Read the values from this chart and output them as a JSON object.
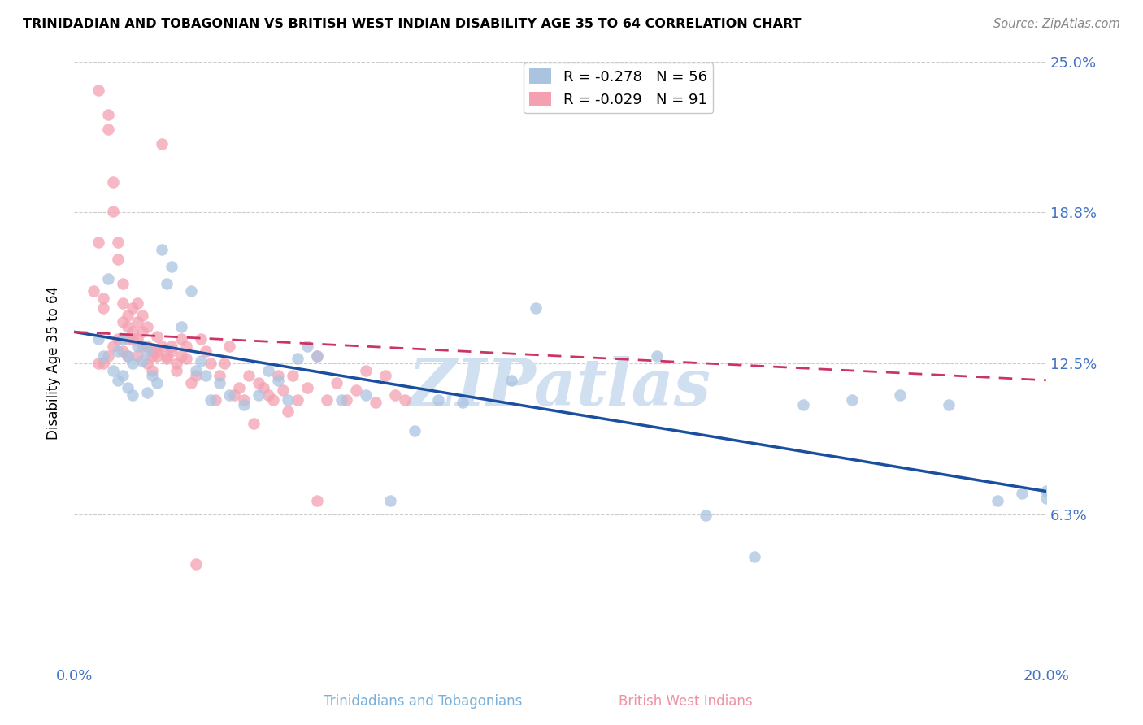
{
  "title": "TRINIDADIAN AND TOBAGONIAN VS BRITISH WEST INDIAN DISABILITY AGE 35 TO 64 CORRELATION CHART",
  "source": "Source: ZipAtlas.com",
  "ylabel": "Disability Age 35 to 64",
  "xlim": [
    0.0,
    0.2
  ],
  "ylim": [
    0.0,
    0.25
  ],
  "yticks": [
    0.0625,
    0.125,
    0.1875,
    0.25
  ],
  "ytick_labels": [
    "6.3%",
    "12.5%",
    "18.8%",
    "25.0%"
  ],
  "xticks": [
    0.0,
    0.05,
    0.1,
    0.15,
    0.2
  ],
  "xtick_labels": [
    "0.0%",
    "",
    "",
    "",
    "20.0%"
  ],
  "legend_entry1": "R = -0.278   N = 56",
  "legend_entry2": "R = -0.029   N = 91",
  "series1_color": "#aac4e0",
  "series2_color": "#f4a0b0",
  "trendline1_color": "#1a4fa0",
  "trendline2_color": "#cc3366",
  "watermark": "ZIPatlas",
  "watermark_color": "#d0e0f0",
  "series1_x": [
    0.005,
    0.006,
    0.007,
    0.008,
    0.009,
    0.009,
    0.01,
    0.01,
    0.011,
    0.011,
    0.012,
    0.012,
    0.013,
    0.014,
    0.015,
    0.015,
    0.016,
    0.017,
    0.018,
    0.019,
    0.02,
    0.022,
    0.024,
    0.025,
    0.026,
    0.027,
    0.028,
    0.03,
    0.032,
    0.035,
    0.038,
    0.04,
    0.042,
    0.044,
    0.046,
    0.048,
    0.05,
    0.055,
    0.06,
    0.065,
    0.07,
    0.075,
    0.08,
    0.09,
    0.095,
    0.12,
    0.13,
    0.14,
    0.15,
    0.16,
    0.17,
    0.18,
    0.19,
    0.195,
    0.2,
    0.2
  ],
  "series1_y": [
    0.135,
    0.128,
    0.16,
    0.122,
    0.13,
    0.118,
    0.135,
    0.12,
    0.128,
    0.115,
    0.125,
    0.112,
    0.132,
    0.126,
    0.13,
    0.113,
    0.12,
    0.117,
    0.172,
    0.158,
    0.165,
    0.14,
    0.155,
    0.122,
    0.126,
    0.12,
    0.11,
    0.117,
    0.112,
    0.108,
    0.112,
    0.122,
    0.118,
    0.11,
    0.127,
    0.132,
    0.128,
    0.11,
    0.112,
    0.068,
    0.097,
    0.11,
    0.109,
    0.118,
    0.148,
    0.128,
    0.062,
    0.045,
    0.108,
    0.11,
    0.112,
    0.108,
    0.068,
    0.071,
    0.072,
    0.069
  ],
  "series2_x": [
    0.004,
    0.005,
    0.005,
    0.006,
    0.006,
    0.007,
    0.007,
    0.008,
    0.008,
    0.009,
    0.009,
    0.01,
    0.01,
    0.01,
    0.011,
    0.011,
    0.011,
    0.012,
    0.012,
    0.013,
    0.013,
    0.013,
    0.014,
    0.014,
    0.015,
    0.015,
    0.016,
    0.016,
    0.017,
    0.017,
    0.018,
    0.019,
    0.02,
    0.021,
    0.022,
    0.023,
    0.024,
    0.025,
    0.026,
    0.027,
    0.028,
    0.029,
    0.03,
    0.031,
    0.032,
    0.033,
    0.034,
    0.035,
    0.036,
    0.037,
    0.038,
    0.039,
    0.04,
    0.041,
    0.042,
    0.043,
    0.044,
    0.045,
    0.046,
    0.048,
    0.05,
    0.052,
    0.054,
    0.056,
    0.058,
    0.06,
    0.062,
    0.064,
    0.066,
    0.068,
    0.005,
    0.006,
    0.007,
    0.008,
    0.009,
    0.01,
    0.011,
    0.012,
    0.013,
    0.014,
    0.015,
    0.016,
    0.017,
    0.018,
    0.019,
    0.02,
    0.021,
    0.022,
    0.023,
    0.05,
    0.025
  ],
  "series2_y": [
    0.155,
    0.238,
    0.175,
    0.148,
    0.152,
    0.228,
    0.222,
    0.2,
    0.188,
    0.175,
    0.168,
    0.158,
    0.15,
    0.142,
    0.14,
    0.135,
    0.145,
    0.148,
    0.138,
    0.15,
    0.142,
    0.135,
    0.145,
    0.138,
    0.132,
    0.14,
    0.13,
    0.122,
    0.136,
    0.128,
    0.216,
    0.127,
    0.132,
    0.122,
    0.135,
    0.127,
    0.117,
    0.12,
    0.135,
    0.13,
    0.125,
    0.11,
    0.12,
    0.125,
    0.132,
    0.112,
    0.115,
    0.11,
    0.12,
    0.1,
    0.117,
    0.115,
    0.112,
    0.11,
    0.12,
    0.114,
    0.105,
    0.12,
    0.11,
    0.115,
    0.068,
    0.11,
    0.117,
    0.11,
    0.114,
    0.122,
    0.109,
    0.12,
    0.112,
    0.11,
    0.125,
    0.125,
    0.128,
    0.132,
    0.135,
    0.13,
    0.128,
    0.135,
    0.128,
    0.132,
    0.125,
    0.128,
    0.13,
    0.132,
    0.128,
    0.13,
    0.125,
    0.128,
    0.132,
    0.128,
    0.042
  ]
}
